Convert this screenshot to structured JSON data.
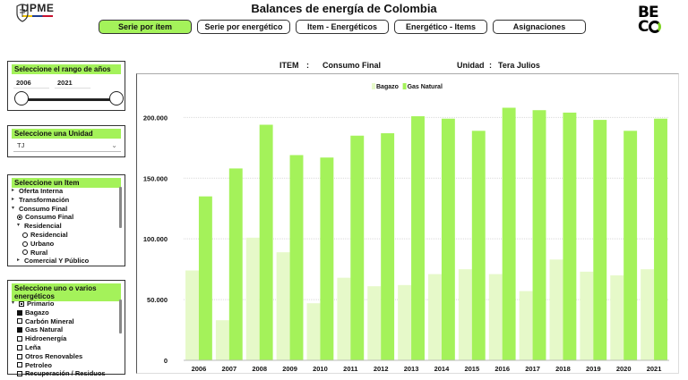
{
  "header": {
    "title": "Balances de energía de Colombia",
    "upme_logo_text": "UPME",
    "beco_logo_text": "BECO",
    "tabs": [
      {
        "label": "Serie por ítem",
        "active": true
      },
      {
        "label": "Serie por energético",
        "active": false
      },
      {
        "label": "Item - Energéticos",
        "active": false
      },
      {
        "label": "Energético - Items",
        "active": false
      },
      {
        "label": "Asignaciones",
        "active": false
      }
    ]
  },
  "filters": {
    "year_range": {
      "title": "Seleccione el rango de años",
      "start": "2006",
      "end": "2021",
      "start_fraction": 0,
      "end_fraction": 1
    },
    "unit": {
      "title": "Seleccione una Unidad",
      "selected": "TJ"
    },
    "item": {
      "title": "Seleccione un Item",
      "rows": [
        {
          "label": "Oferta Interna",
          "kind": "collapsed",
          "level": 0
        },
        {
          "label": "Transformación",
          "kind": "collapsed",
          "level": 0
        },
        {
          "label": "Consumo Final",
          "kind": "expanded",
          "level": 0
        },
        {
          "label": "Consumo Final",
          "kind": "radio-on",
          "level": 1
        },
        {
          "label": "Residencial",
          "kind": "expanded",
          "level": 1
        },
        {
          "label": "Residencial",
          "kind": "radio",
          "level": 2
        },
        {
          "label": "Urbano",
          "kind": "radio",
          "level": 2
        },
        {
          "label": "Rural",
          "kind": "radio",
          "level": 2
        },
        {
          "label": "Comercial Y Público",
          "kind": "collapsed",
          "level": 1
        }
      ]
    },
    "energeticos": {
      "title": "Seleccione uno o varios energéticos",
      "rows": [
        {
          "label": "Primario",
          "kind": "partial",
          "level": 0
        },
        {
          "label": "Bagazo",
          "kind": "checked",
          "level": 1
        },
        {
          "label": "Carbón Mineral",
          "kind": "unchecked",
          "level": 1
        },
        {
          "label": "Gas Natural",
          "kind": "checked",
          "level": 1
        },
        {
          "label": "Hidroenergía",
          "kind": "unchecked",
          "level": 1
        },
        {
          "label": "Leña",
          "kind": "unchecked",
          "level": 1
        },
        {
          "label": "Otros Renovables",
          "kind": "unchecked",
          "level": 1
        },
        {
          "label": "Petroleo",
          "kind": "unchecked",
          "level": 1
        },
        {
          "label": "Recuperación / Residuos",
          "kind": "unchecked",
          "level": 1
        }
      ]
    }
  },
  "chart_header": {
    "item_label": "ITEM",
    "item_sep": ":",
    "item_value": "Consumo Final",
    "unit_label": "Unidad",
    "unit_sep": ":",
    "unit_value": "Tera Julios"
  },
  "chart_data": {
    "type": "bar",
    "categories": [
      "2006",
      "2007",
      "2008",
      "2009",
      "2010",
      "2011",
      "2012",
      "2013",
      "2014",
      "2015",
      "2016",
      "2017",
      "2018",
      "2019",
      "2020",
      "2021"
    ],
    "series": [
      {
        "name": "Bagazo",
        "color": "#e6f9c9",
        "values": [
          74000,
          33000,
          101000,
          89000,
          47000,
          68000,
          61000,
          62000,
          71000,
          75000,
          71000,
          57000,
          83000,
          73000,
          70000,
          75000
        ]
      },
      {
        "name": "Gas Natural",
        "color": "#a4f25a",
        "values": [
          135000,
          158000,
          194000,
          169000,
          167000,
          185000,
          187000,
          201000,
          199000,
          189000,
          208000,
          206000,
          204000,
          198000,
          189000,
          199000
        ]
      }
    ],
    "yticks": [
      "0",
      "50.000",
      "100.000",
      "150.000",
      "200.000"
    ],
    "ytick_values": [
      0,
      50000,
      100000,
      150000,
      200000
    ],
    "ylim": [
      0,
      215000
    ],
    "grid": true,
    "legend_position": "top-center"
  }
}
